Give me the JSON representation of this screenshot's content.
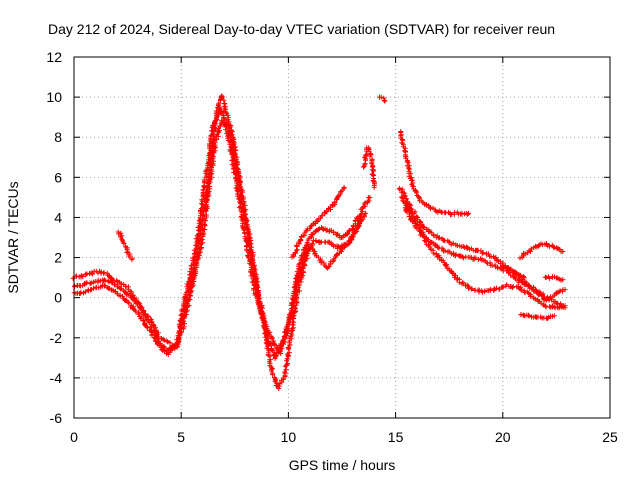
{
  "chart_data": {
    "type": "scatter",
    "title": "Day 212 of 2024, Sidereal Day-to-day VTEC variation (SDTVAR) for receiver reun",
    "xlabel": "GPS time / hours",
    "ylabel": "SDTVAR / TECUs",
    "xlim": [
      0,
      25
    ],
    "ylim": [
      -6,
      12
    ],
    "xticks": [
      0,
      5,
      10,
      15,
      20,
      25
    ],
    "yticks": [
      -6,
      -4,
      -2,
      0,
      2,
      4,
      6,
      8,
      10,
      12
    ],
    "grid": true,
    "marker": "plus",
    "series": [
      {
        "name": "SDTVAR",
        "color": "#ff0000",
        "tracks": [
          [
            [
              0.0,
              1.0
            ],
            [
              0.5,
              1.1
            ],
            [
              1.0,
              1.3
            ],
            [
              1.5,
              1.2
            ],
            [
              2.0,
              0.8
            ],
            [
              2.5,
              0.5
            ],
            [
              3.0,
              -0.3
            ],
            [
              3.5,
              -1.0
            ],
            [
              4.0,
              -2.0
            ],
            [
              4.5,
              -2.3
            ],
            [
              4.8,
              -2.5
            ],
            [
              5.0,
              -1.0
            ],
            [
              5.3,
              0.5
            ],
            [
              5.6,
              2.0
            ],
            [
              5.9,
              4.0
            ],
            [
              6.2,
              6.5
            ],
            [
              6.5,
              8.5
            ],
            [
              6.8,
              9.5
            ],
            [
              7.0,
              9.0
            ],
            [
              7.3,
              7.5
            ],
            [
              7.6,
              5.5
            ],
            [
              8.0,
              3.0
            ],
            [
              8.4,
              0.5
            ],
            [
              8.8,
              -1.0
            ],
            [
              9.2,
              -2.0
            ],
            [
              9.6,
              -2.8
            ],
            [
              10.0,
              -1.5
            ],
            [
              10.3,
              0.5
            ],
            [
              10.6,
              2.0
            ],
            [
              11.0,
              3.0
            ],
            [
              11.5,
              3.5
            ],
            [
              12.0,
              3.3
            ],
            [
              12.5,
              3.0
            ],
            [
              13.0,
              3.5
            ],
            [
              13.5,
              4.5
            ],
            [
              13.8,
              5.0
            ]
          ],
          [
            [
              0.0,
              0.5
            ],
            [
              0.5,
              0.7
            ],
            [
              1.0,
              0.8
            ],
            [
              1.5,
              0.9
            ],
            [
              2.0,
              0.6
            ],
            [
              2.5,
              0.2
            ],
            [
              3.0,
              -0.4
            ],
            [
              3.5,
              -1.2
            ],
            [
              4.0,
              -2.3
            ],
            [
              4.3,
              -2.6
            ],
            [
              4.7,
              -2.5
            ],
            [
              5.0,
              -1.8
            ],
            [
              5.4,
              0.0
            ],
            [
              5.7,
              1.5
            ],
            [
              6.0,
              3.0
            ],
            [
              6.3,
              5.5
            ],
            [
              6.6,
              7.8
            ],
            [
              6.9,
              8.8
            ],
            [
              7.2,
              8.5
            ],
            [
              7.5,
              7.0
            ],
            [
              7.8,
              5.0
            ],
            [
              8.2,
              2.5
            ],
            [
              8.6,
              0.0
            ],
            [
              9.0,
              -2.0
            ],
            [
              9.4,
              -3.0
            ],
            [
              9.8,
              -2.0
            ],
            [
              10.2,
              -0.5
            ],
            [
              10.5,
              1.0
            ],
            [
              10.8,
              2.2
            ],
            [
              11.2,
              2.8
            ],
            [
              11.8,
              2.8
            ],
            [
              12.3,
              2.5
            ],
            [
              12.8,
              2.7
            ],
            [
              13.2,
              3.5
            ],
            [
              13.6,
              4.2
            ]
          ],
          [
            [
              0.0,
              0.2
            ],
            [
              0.5,
              0.3
            ],
            [
              1.0,
              0.5
            ],
            [
              1.5,
              0.6
            ],
            [
              2.0,
              0.2
            ],
            [
              2.5,
              -0.2
            ],
            [
              3.0,
              -0.8
            ],
            [
              3.5,
              -1.6
            ],
            [
              4.0,
              -2.5
            ],
            [
              4.4,
              -2.8
            ],
            [
              4.8,
              -2.3
            ],
            [
              5.2,
              -0.5
            ],
            [
              5.5,
              1.0
            ],
            [
              5.8,
              2.5
            ],
            [
              6.1,
              4.5
            ],
            [
              6.4,
              7.0
            ],
            [
              6.7,
              9.5
            ],
            [
              6.9,
              10.1
            ],
            [
              7.1,
              9.2
            ],
            [
              7.4,
              8.0
            ],
            [
              7.7,
              6.0
            ],
            [
              8.1,
              3.5
            ],
            [
              8.5,
              1.0
            ],
            [
              8.9,
              -1.5
            ],
            [
              9.2,
              -3.5
            ],
            [
              9.5,
              -4.5
            ],
            [
              9.8,
              -4.0
            ],
            [
              10.1,
              -2.0
            ],
            [
              10.4,
              0.0
            ],
            [
              10.7,
              1.5
            ],
            [
              11.0,
              2.5
            ],
            [
              11.4,
              2.0
            ],
            [
              11.8,
              1.5
            ],
            [
              12.2,
              2.0
            ],
            [
              12.6,
              2.5
            ],
            [
              13.0,
              3.0
            ],
            [
              13.4,
              4.0
            ]
          ],
          [
            [
              2.1,
              3.3
            ],
            [
              2.3,
              2.8
            ],
            [
              2.5,
              2.3
            ],
            [
              2.7,
              1.9
            ]
          ],
          [
            [
              10.2,
              2.0
            ],
            [
              10.6,
              3.0
            ],
            [
              11.0,
              3.5
            ],
            [
              11.5,
              4.0
            ],
            [
              12.0,
              4.5
            ],
            [
              12.3,
              5.0
            ],
            [
              12.6,
              5.5
            ]
          ],
          [
            [
              13.5,
              6.5
            ],
            [
              13.7,
              7.5
            ],
            [
              13.9,
              6.8
            ],
            [
              14.0,
              5.5
            ]
          ],
          [
            [
              14.3,
              10.0
            ],
            [
              14.5,
              9.8
            ]
          ],
          [
            [
              15.2,
              8.3
            ],
            [
              15.5,
              7.0
            ],
            [
              15.8,
              5.5
            ],
            [
              16.2,
              4.8
            ],
            [
              16.6,
              4.5
            ],
            [
              17.0,
              4.3
            ],
            [
              17.5,
              4.2
            ],
            [
              18.0,
              4.2
            ],
            [
              18.4,
              4.2
            ]
          ],
          [
            [
              15.2,
              5.5
            ],
            [
              15.7,
              4.5
            ],
            [
              16.3,
              3.5
            ],
            [
              17.0,
              3.0
            ],
            [
              17.6,
              2.7
            ],
            [
              18.2,
              2.5
            ],
            [
              19.0,
              2.3
            ],
            [
              19.6,
              2.0
            ],
            [
              20.2,
              1.5
            ],
            [
              20.6,
              1.2
            ],
            [
              21.0,
              1.0
            ]
          ],
          [
            [
              15.3,
              5.0
            ],
            [
              15.8,
              4.0
            ],
            [
              16.4,
              3.0
            ],
            [
              17.0,
              2.5
            ],
            [
              17.6,
              2.2
            ],
            [
              18.2,
              2.0
            ],
            [
              19.0,
              1.9
            ],
            [
              19.6,
              1.6
            ],
            [
              20.2,
              1.3
            ],
            [
              20.8,
              0.8
            ],
            [
              21.4,
              0.5
            ],
            [
              22.0,
              0.0
            ],
            [
              22.6,
              -0.3
            ],
            [
              22.9,
              -0.5
            ]
          ],
          [
            [
              15.4,
              4.5
            ],
            [
              16.0,
              3.5
            ],
            [
              16.6,
              2.5
            ],
            [
              17.2,
              1.8
            ],
            [
              17.8,
              1.0
            ],
            [
              18.4,
              0.5
            ],
            [
              19.0,
              0.3
            ],
            [
              19.6,
              0.4
            ],
            [
              20.2,
              0.6
            ],
            [
              20.8,
              0.5
            ],
            [
              21.4,
              0.0
            ],
            [
              22.0,
              -0.4
            ],
            [
              22.6,
              -0.5
            ],
            [
              22.9,
              -0.4
            ]
          ],
          [
            [
              20.0,
              1.6
            ],
            [
              20.5,
              1.3
            ],
            [
              21.0,
              0.8
            ],
            [
              21.5,
              0.3
            ],
            [
              22.0,
              -0.1
            ],
            [
              22.5,
              0.2
            ],
            [
              22.9,
              0.4
            ]
          ],
          [
            [
              20.8,
              -0.8
            ],
            [
              21.2,
              -0.9
            ],
            [
              21.6,
              -1.0
            ],
            [
              22.0,
              -1.0
            ],
            [
              22.4,
              -0.9
            ]
          ],
          [
            [
              20.8,
              2.0
            ],
            [
              21.2,
              2.3
            ],
            [
              21.6,
              2.6
            ],
            [
              22.0,
              2.7
            ],
            [
              22.4,
              2.5
            ],
            [
              22.8,
              2.3
            ]
          ],
          [
            [
              22.0,
              1.0
            ],
            [
              22.4,
              1.0
            ],
            [
              22.8,
              0.9
            ]
          ]
        ]
      }
    ]
  }
}
